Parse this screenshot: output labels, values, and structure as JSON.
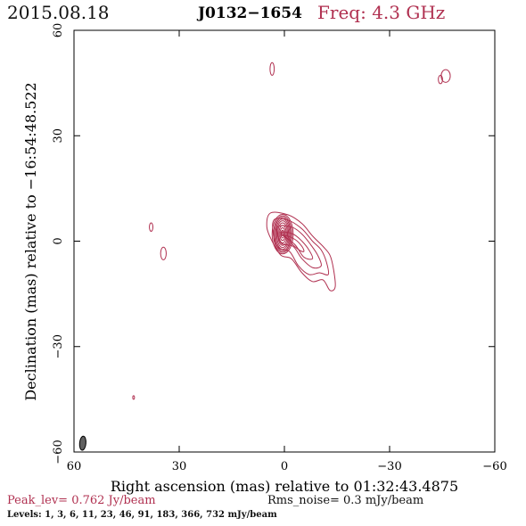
{
  "header": {
    "date": "2015.08.18",
    "source": "J0132−1654",
    "freq_label": "Freq:",
    "freq_value": "4.3 GHz"
  },
  "chart_data": {
    "type": "contour",
    "xlabel": "Right ascension (mas) relative to 01:32:43.4875",
    "ylabel": "Declination (mas) relative to −16:54:48.522",
    "xlim": [
      60,
      -60
    ],
    "ylim": [
      -60,
      60
    ],
    "xticks": [
      60,
      30,
      0,
      -30,
      -60
    ],
    "yticks": [
      -60,
      -30,
      0,
      30,
      60
    ],
    "xtick_labels": [
      "60",
      "30",
      "0",
      "−30",
      "−60"
    ],
    "ytick_labels": [
      "−60",
      "−30",
      "0",
      "30",
      "60"
    ],
    "grid": false,
    "contour_color": "#b03050",
    "beam": {
      "x": 57.5,
      "y": -57.5,
      "major": 4.0,
      "minor": 1.8,
      "pa_deg": 5,
      "color": "#606060"
    },
    "core": {
      "x": 0.5,
      "y": 2,
      "rings": [
        {
          "rx": 3.0,
          "ry": 5.6
        },
        {
          "rx": 2.6,
          "ry": 5.2
        },
        {
          "rx": 2.3,
          "ry": 4.8
        },
        {
          "rx": 2.0,
          "ry": 4.3
        },
        {
          "rx": 1.7,
          "ry": 3.8
        },
        {
          "rx": 1.4,
          "ry": 3.2
        },
        {
          "rx": 1.1,
          "ry": 2.5
        },
        {
          "rx": 0.8,
          "ry": 1.8
        },
        {
          "rx": 0.5,
          "ry": 1.1
        },
        {
          "rx": 0.3,
          "ry": 0.5
        }
      ]
    },
    "jet_contours": [
      [
        [
          4,
          8
        ],
        [
          -1,
          7.5
        ],
        [
          -5,
          5
        ],
        [
          -8,
          1.5
        ],
        [
          -11,
          -1.5
        ],
        [
          -13,
          -4
        ],
        [
          -14,
          -8
        ],
        [
          -14.5,
          -13
        ],
        [
          -13,
          -14
        ],
        [
          -11,
          -11
        ],
        [
          -8,
          -11.5
        ],
        [
          -5,
          -9
        ],
        [
          -2,
          -5
        ],
        [
          1,
          -4
        ],
        [
          3.5,
          0
        ],
        [
          5,
          4
        ]
      ],
      [
        [
          3,
          6
        ],
        [
          -1,
          6
        ],
        [
          -5,
          3.5
        ],
        [
          -8,
          0
        ],
        [
          -10.5,
          -2.5
        ],
        [
          -12,
          -6
        ],
        [
          -12.5,
          -9.5
        ],
        [
          -10,
          -9
        ],
        [
          -7,
          -9.5
        ],
        [
          -4,
          -7
        ],
        [
          -1.5,
          -3
        ],
        [
          1.5,
          -2
        ],
        [
          3,
          1
        ]
      ],
      [
        [
          2,
          4
        ],
        [
          -2,
          4
        ],
        [
          -5,
          2
        ],
        [
          -7.5,
          -1
        ],
        [
          -9.5,
          -4
        ],
        [
          -10.5,
          -7
        ],
        [
          -8,
          -7.5
        ],
        [
          -5,
          -5
        ],
        [
          -2.5,
          -1.5
        ],
        [
          1,
          -0.5
        ]
      ],
      [
        [
          1,
          2.5
        ],
        [
          -2.5,
          2
        ],
        [
          -5,
          0
        ],
        [
          -7,
          -2.5
        ],
        [
          -8,
          -5
        ],
        [
          -5.5,
          -4.5
        ],
        [
          -3,
          -1
        ]
      ],
      [
        [
          0,
          1.5
        ],
        [
          -3,
          0.5
        ],
        [
          -5,
          -1.5
        ],
        [
          -5.5,
          -3
        ],
        [
          -3.5,
          -2
        ]
      ]
    ],
    "components": [
      {
        "x": 3.5,
        "y": 49,
        "rx": 0.6,
        "ry": 1.8
      },
      {
        "x": -44.5,
        "y": 46,
        "rx": 0.6,
        "ry": 1.2
      },
      {
        "x": -46,
        "y": 47,
        "rx": 1.3,
        "ry": 1.8
      },
      {
        "x": 38,
        "y": 4,
        "rx": 0.5,
        "ry": 1.2
      },
      {
        "x": 34.5,
        "y": -3.5,
        "rx": 0.8,
        "ry": 1.8
      },
      {
        "x": 43,
        "y": -44.5,
        "rx": 0.25,
        "ry": 0.5
      }
    ]
  },
  "footer": {
    "peak": "Peak_lev=  0.762 Jy/beam",
    "rms": "Rms_noise=  0.3 mJy/beam",
    "levels": "Levels:   1,    3,    6,   11,   23,   46,   91,  183,  366,  732  mJy/beam"
  }
}
